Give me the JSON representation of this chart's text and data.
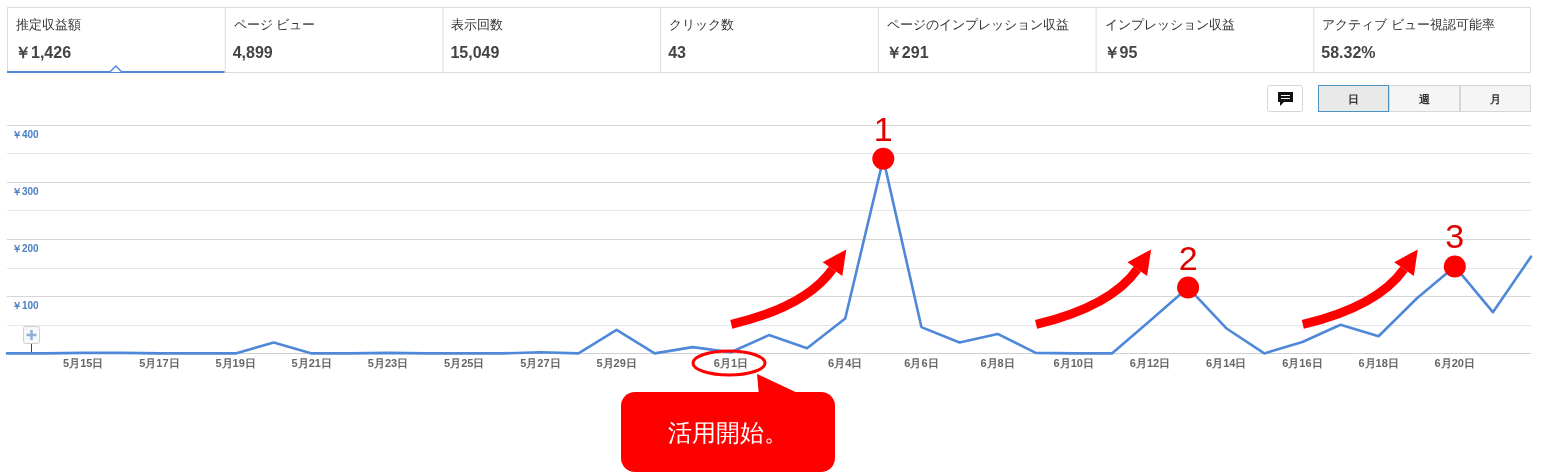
{
  "chart_data": [
    {
      "type": "other",
      "categories": [
        "推定収益額",
        "ページ ビュー",
        "表示回数",
        "クリック数",
        "ページのインプレッション収益",
        "インプレッション収益",
        "アクティブ ビュー視認可能率"
      ],
      "value_labels": [
        "￥1,426",
        "4,899",
        "15,049",
        "43",
        "￥291",
        "￥95",
        "58.32%"
      ]
    },
    {
      "type": "other",
      "categories": [
        "日",
        "週",
        "月"
      ]
    },
    {
      "type": "line",
      "color": "#4f88d8",
      "x": [
        "--05-13",
        "--05-14",
        "--05-15",
        "--05-16",
        "--05-17",
        "--05-18",
        "--05-19",
        "--05-20",
        "--05-21",
        "--05-22",
        "--05-23",
        "--05-24",
        "--05-25",
        "--05-26",
        "--05-27",
        "--05-28",
        "--05-29",
        "--05-30",
        "--05-31",
        "--06-01",
        "--06-02",
        "--06-03",
        "--06-04",
        "--06-05",
        "--06-06",
        "--06-07",
        "--06-08",
        "--06-09",
        "--06-10",
        "--06-11",
        "--06-12",
        "--06-13",
        "--06-14",
        "--06-15",
        "--06-16",
        "--06-17",
        "--06-18",
        "--06-19",
        "--06-20",
        "--06-21",
        "--06-22"
      ],
      "values": [
        0,
        0,
        1,
        1,
        0,
        0,
        0,
        19,
        0,
        0,
        1,
        0,
        0,
        0,
        2,
        0,
        41,
        0,
        11,
        2,
        32,
        9,
        61,
        340,
        46,
        19,
        34,
        1,
        0,
        0,
        57,
        115,
        44,
        0,
        20,
        50,
        30,
        96,
        152,
        72,
        169
      ],
      "xlim": [
        "--05-13",
        "--06-22"
      ],
      "xticks": [
        {
          "value": "--05-15",
          "label": "5月15日"
        },
        {
          "value": "--05-17",
          "label": "5月17日"
        },
        {
          "value": "--05-19",
          "label": "5月19日"
        },
        {
          "value": "--05-21",
          "label": "5月21日"
        },
        {
          "value": "--05-23",
          "label": "5月23日"
        },
        {
          "value": "--05-25",
          "label": "5月25日"
        },
        {
          "value": "--05-27",
          "label": "5月27日"
        },
        {
          "value": "--05-29",
          "label": "5月29日"
        },
        {
          "value": "--06-01",
          "label": "6月1日"
        },
        {
          "value": "--06-04",
          "label": "6月4日"
        },
        {
          "value": "--06-06",
          "label": "6月6日"
        },
        {
          "value": "--06-08",
          "label": "6月8日"
        },
        {
          "value": "--06-10",
          "label": "6月10日"
        },
        {
          "value": "--06-12",
          "label": "6月12日"
        },
        {
          "value": "--06-14",
          "label": "6月14日"
        },
        {
          "value": "--06-16",
          "label": "6月16日"
        },
        {
          "value": "--06-18",
          "label": "6月18日"
        },
        {
          "value": "--06-20",
          "label": "6月20日"
        }
      ],
      "ylim": [
        0,
        400
      ],
      "yticks": [
        {
          "value": 0,
          "label": null
        },
        {
          "value": 50,
          "label": null
        },
        {
          "value": 100,
          "label": "￥100"
        },
        {
          "value": 150,
          "label": null
        },
        {
          "value": 200,
          "label": "￥200"
        },
        {
          "value": 250,
          "label": null
        },
        {
          "value": 300,
          "label": "￥300"
        },
        {
          "value": 350,
          "label": null
        },
        {
          "value": 400,
          "label": "￥400"
        }
      ],
      "grid": "y",
      "annotations": [
        {
          "text": "1",
          "x": "--06-05",
          "y": 340
        },
        {
          "text": "2",
          "x": "--06-13",
          "y": 115
        },
        {
          "text": "3",
          "x": "--06-20",
          "y": 152
        },
        "活用開始。"
      ]
    }
  ]
}
